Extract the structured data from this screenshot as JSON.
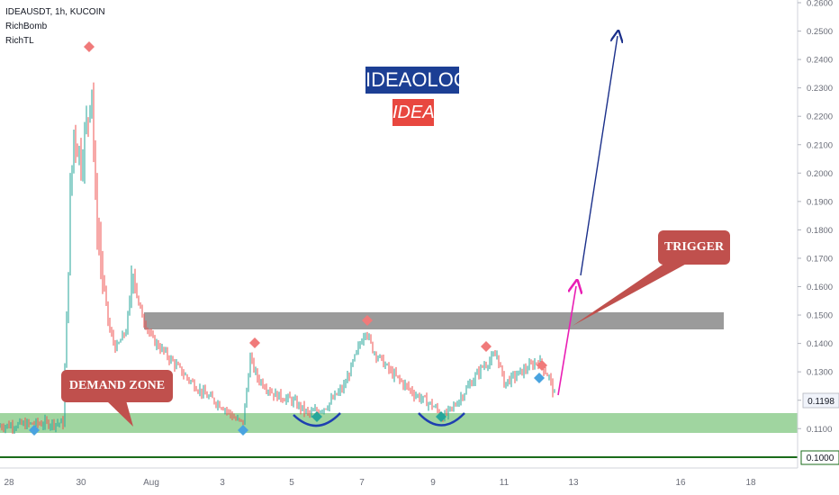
{
  "header": {
    "symbol_line": "IDEAUSDT, 1h, KUCOIN",
    "indicators": [
      "RichBomb",
      "RichTL"
    ]
  },
  "brand": {
    "title": "IDEAOLOGY",
    "subtitle": "IDEA",
    "title_bg": "#1c3f94",
    "subtitle_bg": "#e8473f"
  },
  "annotations": {
    "demand_zone": "DEMAND ZONE",
    "trigger": "TRIGGER",
    "callout_bg": "#c0504d"
  },
  "colors": {
    "up": "#26a69a",
    "down": "#ef5350",
    "zone_fill": "#8fce8f",
    "resistance_fill": "#8a8a8a",
    "baseline": "#1a6b1a",
    "arrow_blue": "#1a2f8a",
    "arrow_magenta": "#e91eb4",
    "arc": "#1e3fb0",
    "marker_red": "#f07a7a",
    "marker_blue": "#4aa3df"
  },
  "chart_data": {
    "type": "candlestick",
    "title": "IDEAUSDT, 1h, KUCOIN",
    "x_tick_labels": [
      "28",
      "30",
      "Aug",
      "3",
      "5",
      "7",
      "9",
      "11",
      "13",
      "16",
      "18"
    ],
    "y_tick_labels": [
      "0.2600",
      "0.2500",
      "0.2400",
      "0.2300",
      "0.2200",
      "0.2100",
      "0.2000",
      "0.1900",
      "0.1800",
      "0.1700",
      "0.1600",
      "0.1500",
      "0.1400",
      "0.1300",
      "0.1200",
      "0.1100",
      "0.1000"
    ],
    "ylim": [
      0.097,
      0.263
    ],
    "last_price": "0.1198",
    "baseline_label": "0.1000",
    "price_path": [
      {
        "x": "27.0",
        "y": 0.1105
      },
      {
        "x": "28.5",
        "y": 0.1115
      },
      {
        "x": "29.2",
        "y": 0.112
      },
      {
        "x": "29.5",
        "y": 0.112
      },
      {
        "x": "29.6",
        "y": 0.15
      },
      {
        "x": "29.7",
        "y": 0.19
      },
      {
        "x": "29.8",
        "y": 0.215
      },
      {
        "x": "30.0",
        "y": 0.205
      },
      {
        "x": "30.2",
        "y": 0.22
      },
      {
        "x": "30.3",
        "y": 0.235
      },
      {
        "x": "30.4",
        "y": 0.19
      },
      {
        "x": "30.6",
        "y": 0.165
      },
      {
        "x": "30.8",
        "y": 0.145
      },
      {
        "x": "31.0",
        "y": 0.138
      },
      {
        "x": "31.3",
        "y": 0.145
      },
      {
        "x": "31.5",
        "y": 0.17
      },
      {
        "x": "31.6",
        "y": 0.155
      },
      {
        "x": "31.8",
        "y": 0.148
      },
      {
        "x": "Aug 1.0",
        "y": 0.142
      },
      {
        "x": "Aug 1.5",
        "y": 0.135
      },
      {
        "x": "Aug 2.0",
        "y": 0.128
      },
      {
        "x": "Aug 2.5",
        "y": 0.122
      },
      {
        "x": "Aug 3.0",
        "y": 0.118
      },
      {
        "x": "Aug 3.4",
        "y": 0.113
      },
      {
        "x": "Aug 3.6",
        "y": 0.112
      },
      {
        "x": "Aug 3.8",
        "y": 0.135
      },
      {
        "x": "Aug 4.0",
        "y": 0.128
      },
      {
        "x": "Aug 4.5",
        "y": 0.122
      },
      {
        "x": "Aug 5.0",
        "y": 0.12
      },
      {
        "x": "Aug 5.5",
        "y": 0.115
      },
      {
        "x": "Aug 6.0",
        "y": 0.118
      },
      {
        "x": "Aug 6.5",
        "y": 0.125
      },
      {
        "x": "Aug 6.8",
        "y": 0.135
      },
      {
        "x": "Aug 7.1",
        "y": 0.145
      },
      {
        "x": "Aug 7.3",
        "y": 0.138
      },
      {
        "x": "Aug 7.8",
        "y": 0.13
      },
      {
        "x": "Aug 8.5",
        "y": 0.122
      },
      {
        "x": "Aug 9.0",
        "y": 0.118
      },
      {
        "x": "Aug 9.3",
        "y": 0.114
      },
      {
        "x": "Aug 9.6",
        "y": 0.118
      },
      {
        "x": "Aug 10.0",
        "y": 0.125
      },
      {
        "x": "Aug 10.4",
        "y": 0.132
      },
      {
        "x": "Aug 10.8",
        "y": 0.136
      },
      {
        "x": "Aug 11.0",
        "y": 0.126
      },
      {
        "x": "Aug 11.5",
        "y": 0.13
      },
      {
        "x": "Aug 12.0",
        "y": 0.134
      },
      {
        "x": "Aug 12.3",
        "y": 0.128
      },
      {
        "x": "Aug 12.5",
        "y": 0.1198
      }
    ],
    "demand_zone": {
      "low": 0.1085,
      "high": 0.115
    },
    "resistance_zone": {
      "low": 0.1455,
      "high": 0.1505
    },
    "grid": false
  }
}
